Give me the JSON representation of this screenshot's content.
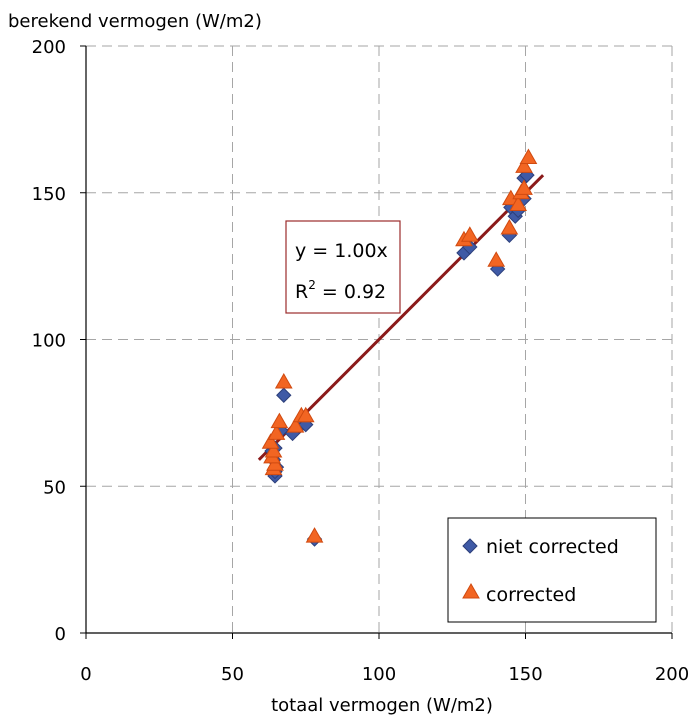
{
  "chart_data": {
    "type": "scatter",
    "ylabel": "berekend vermogen (W/m2)",
    "xlabel": "totaal vermogen (W/m2)",
    "xlim": [
      0,
      200
    ],
    "ylim": [
      0,
      200
    ],
    "x_ticks": [
      0,
      50,
      100,
      150,
      200
    ],
    "y_ticks": [
      0,
      50,
      100,
      150,
      200
    ],
    "x_tick_labels": [
      "0",
      "50",
      "100",
      "150",
      "200"
    ],
    "y_tick_labels": [
      "0",
      "50",
      "100",
      "150",
      "200"
    ],
    "grid": true,
    "legend_position": "bottom-right",
    "series": [
      {
        "name": "niet corrected",
        "marker": "diamond",
        "color": "#3f5aa6",
        "points": [
          [
            64.5,
            53.5
          ],
          [
            64.5,
            55
          ],
          [
            65,
            56.5
          ],
          [
            64,
            59
          ],
          [
            63.5,
            62
          ],
          [
            64.5,
            63
          ],
          [
            66.5,
            69
          ],
          [
            67.5,
            81
          ],
          [
            70.5,
            68
          ],
          [
            73,
            70.5
          ],
          [
            75,
            71
          ],
          [
            78,
            32
          ],
          [
            129,
            129.5
          ],
          [
            131,
            131.5
          ],
          [
            140.5,
            124
          ],
          [
            144.5,
            135.5
          ],
          [
            145,
            145
          ],
          [
            146.5,
            142
          ],
          [
            147.5,
            144
          ],
          [
            149.5,
            148
          ],
          [
            149.5,
            155
          ],
          [
            150.5,
            156
          ]
        ]
      },
      {
        "name": "corrected",
        "marker": "triangle",
        "color": "#f26522",
        "points": [
          [
            64,
            56
          ],
          [
            64.5,
            57.5
          ],
          [
            63.5,
            60
          ],
          [
            64,
            62
          ],
          [
            63,
            65
          ],
          [
            65,
            68
          ],
          [
            66,
            72
          ],
          [
            67.5,
            85.5
          ],
          [
            71.5,
            70.5
          ],
          [
            73.5,
            74
          ],
          [
            75,
            74
          ],
          [
            78,
            33
          ],
          [
            129,
            134
          ],
          [
            131,
            135.5
          ],
          [
            140,
            127
          ],
          [
            144.5,
            138
          ],
          [
            145,
            148
          ],
          [
            147.5,
            146
          ],
          [
            148.5,
            150
          ],
          [
            149.5,
            151.5
          ],
          [
            149.5,
            159
          ],
          [
            151,
            162
          ]
        ]
      }
    ],
    "trendline": {
      "color": "#8b1a1a",
      "x": [
        59,
        156
      ],
      "y": [
        59,
        156
      ],
      "equation_line1": "y = 1.00x",
      "equation_r_label": "R",
      "equation_r_exp": "2",
      "equation_r_value": " = 0.92"
    }
  }
}
